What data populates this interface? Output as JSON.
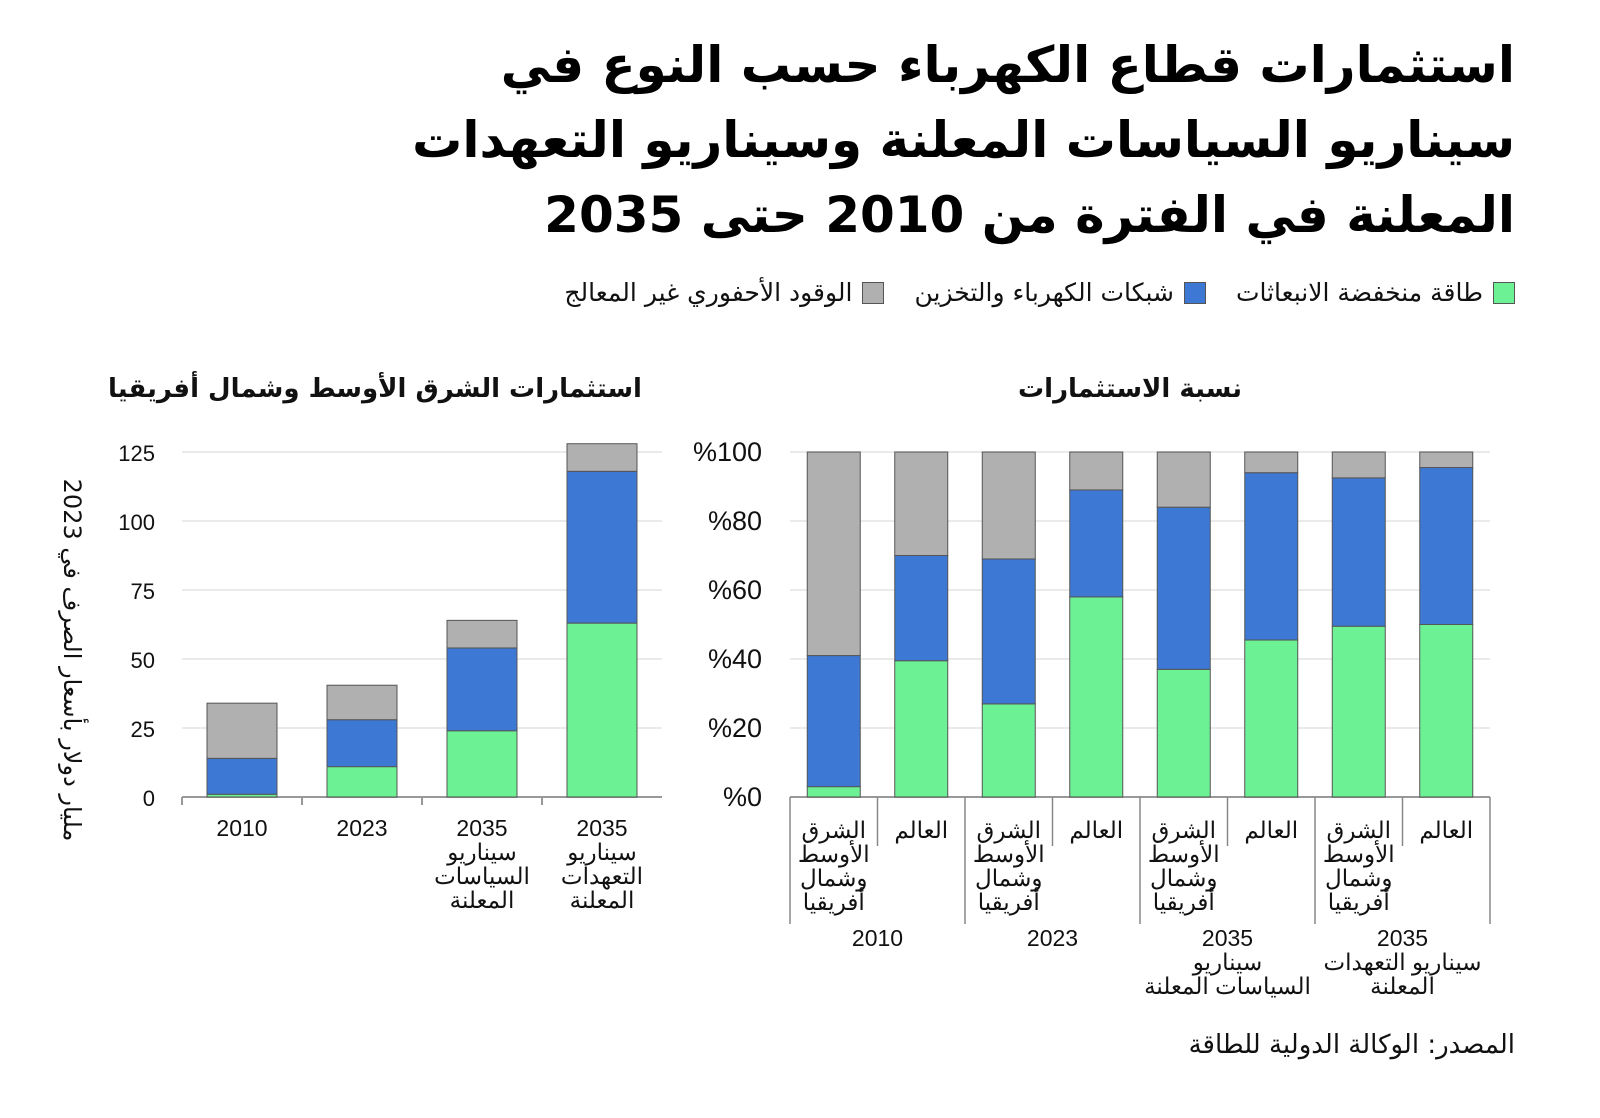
{
  "title_lines": [
    "استثمارات قطاع الكهرباء حسب النوع في",
    "سيناريو السياسات المعلنة وسيناريو التعهدات",
    "المعلنة في الفترة من 2010 حتى 2035"
  ],
  "legend": [
    {
      "label": "طاقة منخفضة الانبعاثات",
      "color": "#6cf294"
    },
    {
      "label": "شبكات الكهرباء والتخزين",
      "color": "#3d78d4"
    },
    {
      "label": "الوقود الأحفوري غير المعالج",
      "color": "#b0b0b0"
    }
  ],
  "source": "المصدر: الوكالة الدولية للطاقة",
  "chart_data": [
    {
      "type": "bar",
      "stacked": true,
      "title": "استثمارات الشرق الأوسط وشمال أفريقيا",
      "ylabel": "مليار دولار بأسعار الصرف في 2023",
      "xlabel": "",
      "ylim": [
        0,
        125
      ],
      "yticks": [
        "0",
        "25",
        "50",
        "75",
        "100",
        "125"
      ],
      "ytick_values": [
        0,
        25,
        50,
        75,
        100,
        125
      ],
      "grid": true,
      "categories": [
        [
          "2010"
        ],
        [
          "2023"
        ],
        [
          "2035",
          "سيناريو",
          "السياسات",
          "المعلنة"
        ],
        [
          "2035",
          "سيناريو",
          "التعهدات",
          "المعلنة"
        ]
      ],
      "series": [
        {
          "name": "طاقة منخفضة الانبعاثات",
          "color": "#6cf294",
          "values": [
            1,
            11,
            24,
            63
          ]
        },
        {
          "name": "شبكات الكهرباء والتخزين",
          "color": "#3d78d4",
          "values": [
            13,
            17,
            30,
            55
          ]
        },
        {
          "name": "الوقود الأحفوري غير المعالج",
          "color": "#b0b0b0",
          "values": [
            20,
            12.5,
            10,
            10
          ]
        }
      ]
    },
    {
      "type": "bar",
      "stacked": true,
      "title": "نسبة الاستثمارات",
      "ylabel": "",
      "xlabel": "",
      "ylim": [
        0,
        100
      ],
      "yticks": [
        "%0",
        "%20",
        "%40",
        "%60",
        "%80",
        "%100"
      ],
      "ytick_values": [
        0,
        20,
        40,
        60,
        80,
        100
      ],
      "grid": true,
      "categories": [
        [
          "الشرق",
          "الأوسط",
          "وشمال",
          "أفريقيا"
        ],
        [
          "العالم"
        ],
        [
          "الشرق",
          "الأوسط",
          "وشمال",
          "أفريقيا"
        ],
        [
          "العالم"
        ],
        [
          "الشرق",
          "الأوسط",
          "وشمال",
          "أفريقيا"
        ],
        [
          "العالم"
        ],
        [
          "الشرق",
          "الأوسط",
          "وشمال",
          "أفريقيا"
        ],
        [
          "العالم"
        ]
      ],
      "groups": [
        [
          "2010"
        ],
        [
          "2023"
        ],
        [
          "2035",
          "سيناريو",
          "السياسات المعلنة"
        ],
        [
          "2035",
          "سيناريو التعهدات",
          "المعلنة"
        ]
      ],
      "series": [
        {
          "name": "طاقة منخفضة الانبعاثات",
          "color": "#6cf294",
          "values": [
            3,
            39.5,
            27,
            58,
            37,
            45.5,
            49.5,
            50
          ]
        },
        {
          "name": "شبكات الكهرباء والتخزين",
          "color": "#3d78d4",
          "values": [
            38,
            30.5,
            42,
            31,
            47,
            48.5,
            43,
            45.5
          ]
        },
        {
          "name": "الوقود الأحفوري غير المعالج",
          "color": "#b0b0b0",
          "values": [
            59,
            30,
            31,
            11,
            16,
            6,
            7.5,
            4.5
          ]
        }
      ]
    }
  ]
}
